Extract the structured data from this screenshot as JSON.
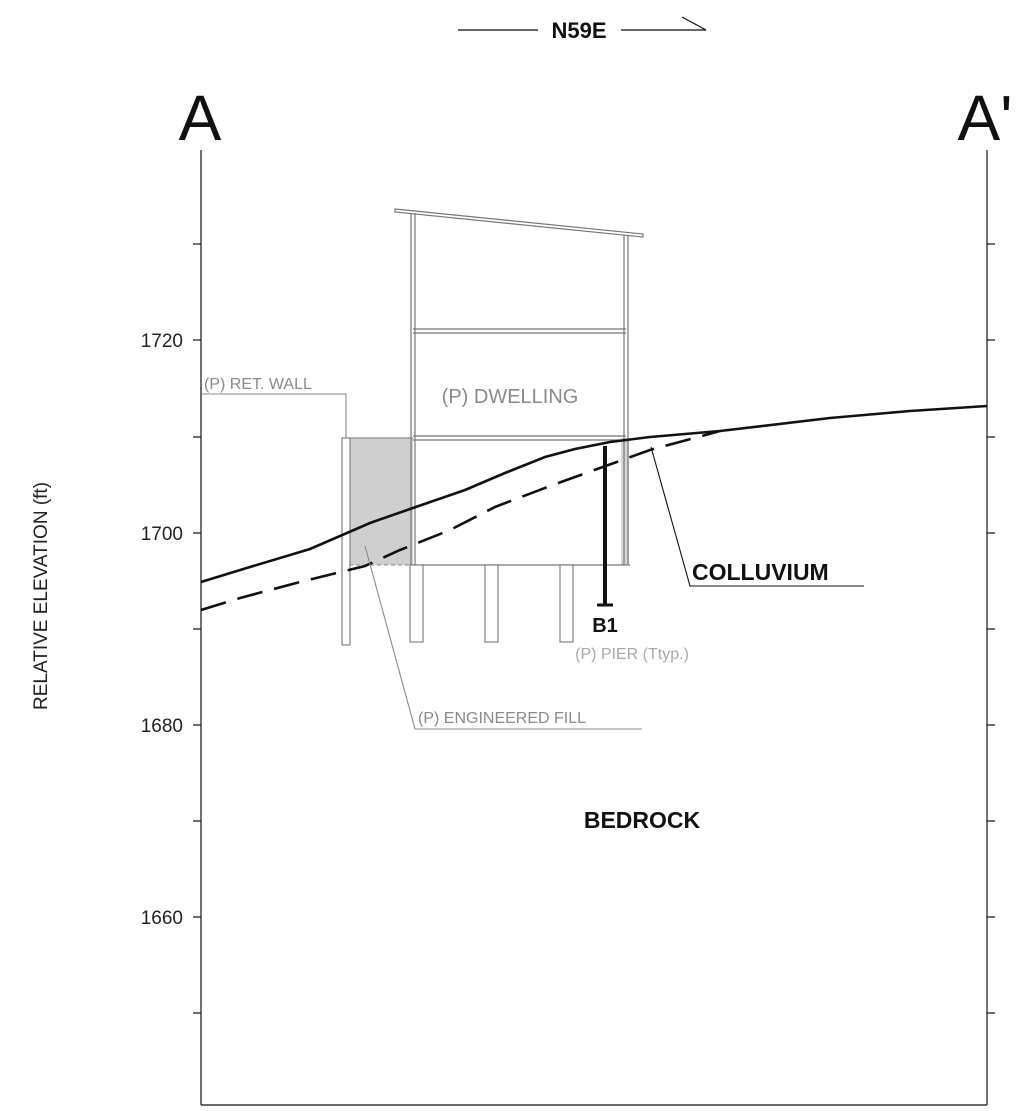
{
  "header": {
    "direction": "N59E",
    "start_label": "A",
    "end_label": "A'"
  },
  "axis": {
    "ylabel": "RELATIVE ELEVATION (ft)",
    "ticks": [
      "1720",
      "1700",
      "1680",
      "1660"
    ]
  },
  "labels": {
    "dwelling": "(P) DWELLING",
    "ret_wall": "(P) RET. WALL",
    "colluvium": "COLLUVIUM",
    "boring": "B1",
    "pier": "(P) PIER (Ttyp.)",
    "fill": "(P) ENGINEERED FILL",
    "bedrock": "BEDROCK"
  },
  "colors": {
    "line": "#111111",
    "leader": "#8a8a8a",
    "fill": "#cfcfcf",
    "structure": "#777777"
  }
}
